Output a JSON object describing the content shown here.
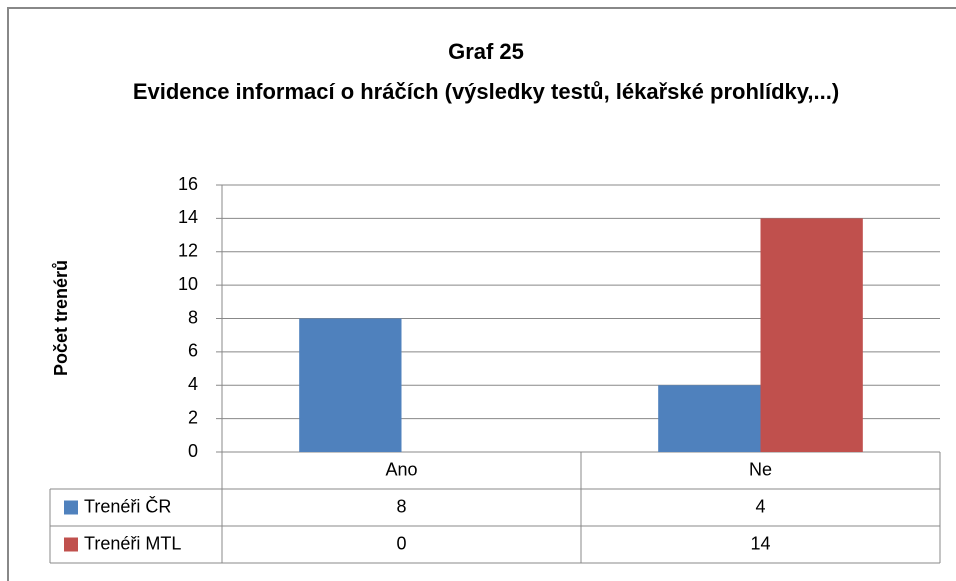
{
  "chart_data": {
    "type": "bar",
    "title": "Graf 25",
    "subtitle": "Evidence informací o hráčích (výsledky testů, lékařské prohlídky,...)",
    "y_label": "Počet trenérů",
    "categories": [
      "Ano",
      "Ne"
    ],
    "series": [
      {
        "name": "Trenéři ČR",
        "color": "#4f81bd",
        "values": [
          8,
          4
        ]
      },
      {
        "name": "Trenéři MTL",
        "color": "#c0504d",
        "values": [
          0,
          14
        ]
      }
    ],
    "ylim": [
      0,
      16
    ],
    "yticks": [
      0,
      2,
      4,
      6,
      8,
      10,
      12,
      14,
      16
    ],
    "grid": true,
    "data_table": true
  }
}
